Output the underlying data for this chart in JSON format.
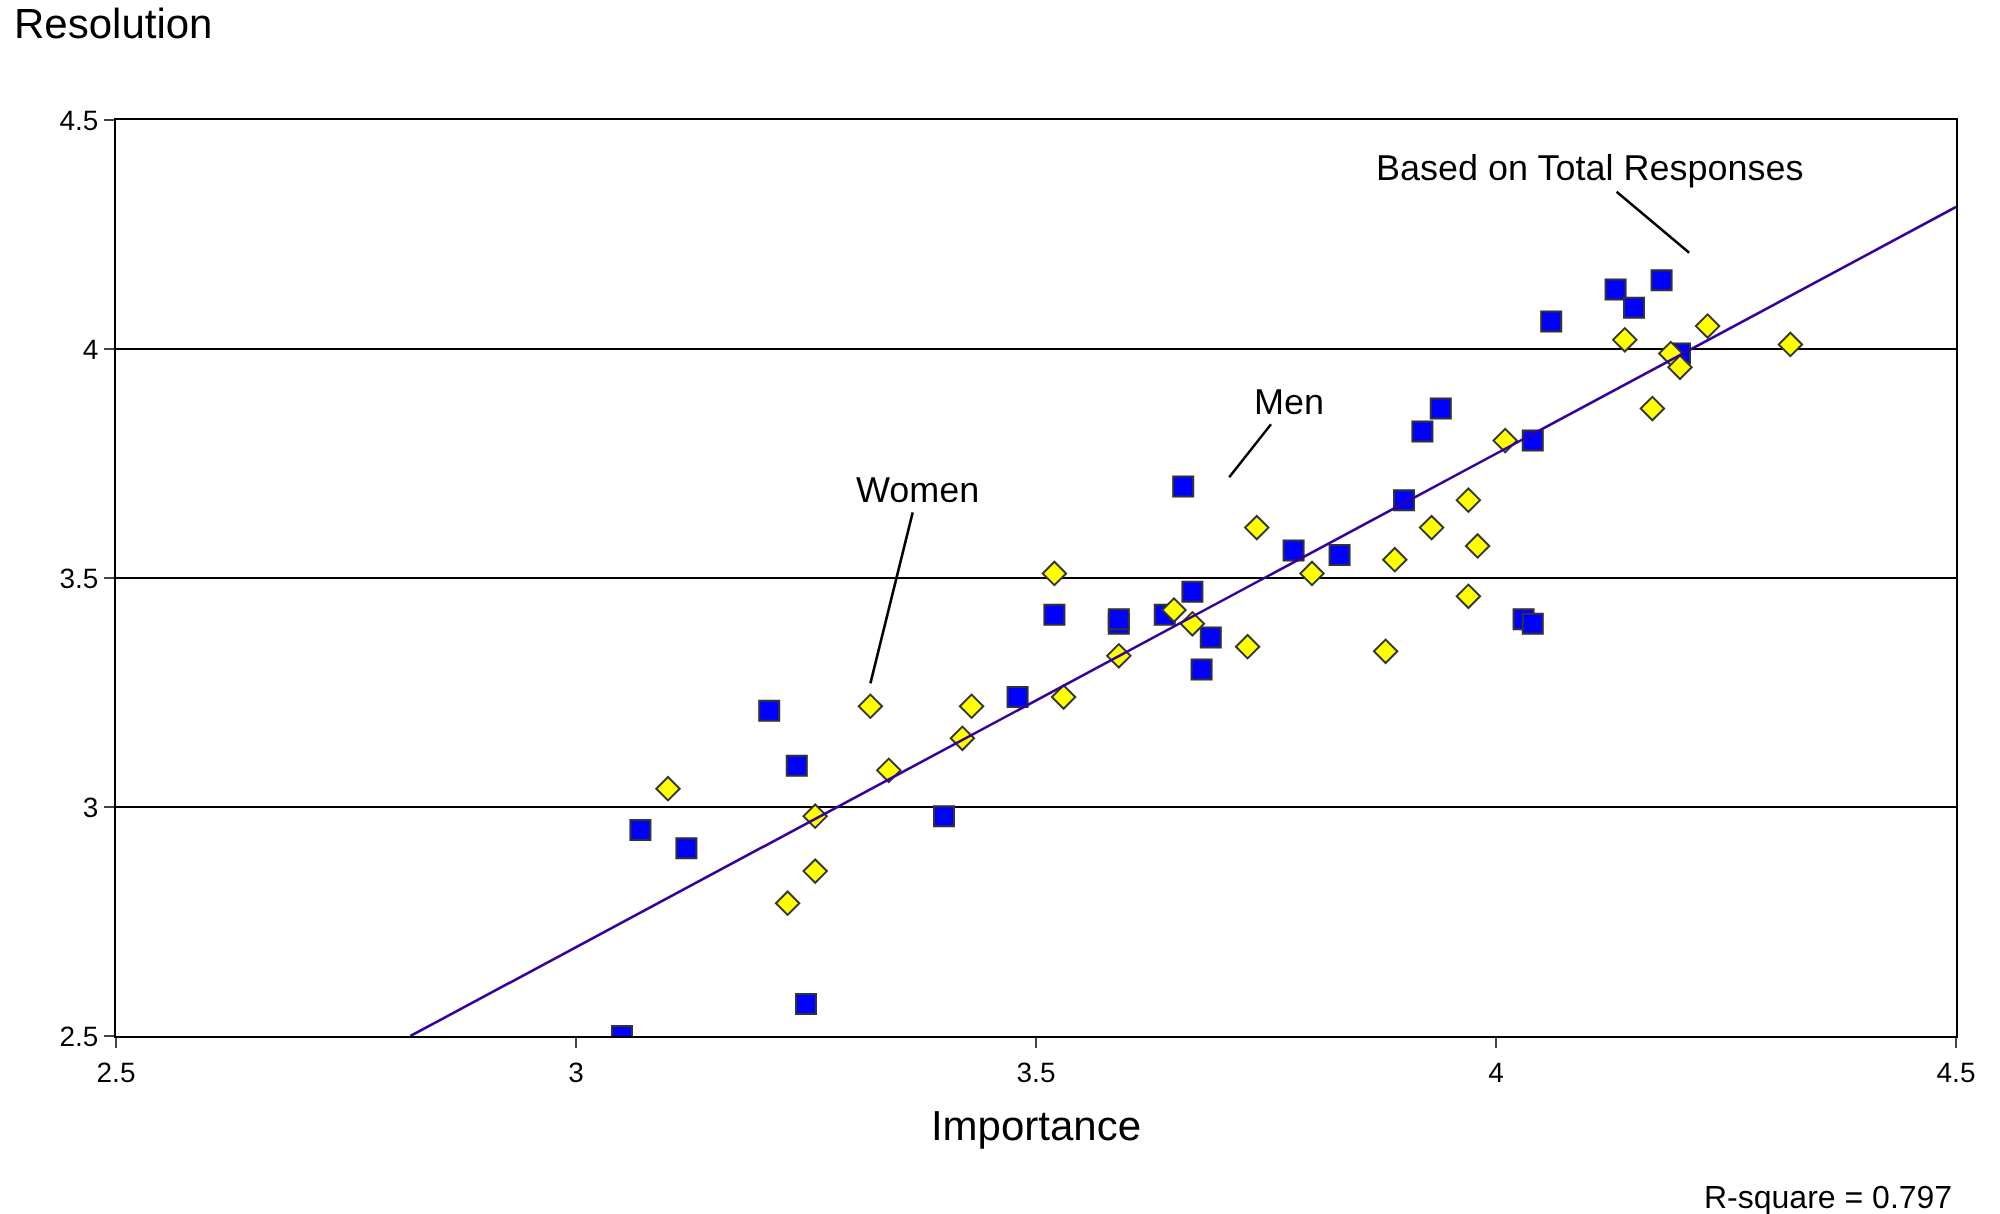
{
  "chart_data": {
    "type": "scatter",
    "xlabel": "Importance",
    "ylabel": "Resolution",
    "annotations": [
      "R-square = 0.797"
    ],
    "xlim": [
      2.5,
      4.5
    ],
    "xticks": [
      2.5,
      3,
      3.5,
      4,
      4.5
    ],
    "ylim": [
      2.5,
      4.5
    ],
    "yticks": [
      2.5,
      3,
      3.5,
      4,
      4.5
    ],
    "grid": "y",
    "legend": false,
    "series": [
      {
        "name": "Men",
        "color": "#0000ff",
        "marker": "square",
        "x": [
          3.05,
          3.07,
          3.12,
          3.21,
          3.24,
          3.25,
          3.4,
          3.48,
          3.52,
          3.59,
          3.59,
          3.64,
          3.67,
          3.68,
          3.69,
          3.66,
          3.78,
          3.83,
          3.9,
          3.92,
          3.94,
          4.03,
          4.04,
          4.04,
          4.06,
          4.13,
          4.15,
          4.18,
          4.2
        ],
        "values": [
          2.5,
          2.95,
          2.91,
          3.21,
          3.09,
          2.57,
          2.98,
          3.24,
          3.42,
          3.4,
          3.41,
          3.42,
          3.47,
          3.3,
          3.37,
          3.7,
          3.56,
          3.55,
          3.67,
          3.82,
          3.87,
          3.41,
          3.4,
          3.8,
          4.06,
          4.13,
          4.09,
          4.15,
          3.99
        ]
      },
      {
        "name": "Women",
        "color": "#ffff00",
        "marker": "diamond",
        "x": [
          3.1,
          3.32,
          3.43,
          3.42,
          3.34,
          3.26,
          3.26,
          3.23,
          3.52,
          3.53,
          3.59,
          3.65,
          3.67,
          3.73,
          3.74,
          3.8,
          3.88,
          3.89,
          3.93,
          3.97,
          3.98,
          3.97,
          4.01,
          4.14,
          4.19,
          4.2,
          4.23,
          4.17,
          4.32
        ],
        "values": [
          3.04,
          3.22,
          3.22,
          3.15,
          3.08,
          2.98,
          2.86,
          2.79,
          3.51,
          3.24,
          3.33,
          3.43,
          3.4,
          3.35,
          3.61,
          3.51,
          3.34,
          3.54,
          3.61,
          3.67,
          3.57,
          3.46,
          3.8,
          4.02,
          3.99,
          3.96,
          4.05,
          3.87,
          4.01
        ]
      },
      {
        "name": "Based on Total Responses",
        "type": "line",
        "color": "#330099",
        "marker": "none",
        "line_style": "solid",
        "x": [
          2.82,
          4.5
        ],
        "values": [
          2.5,
          4.31
        ]
      }
    ]
  }
}
